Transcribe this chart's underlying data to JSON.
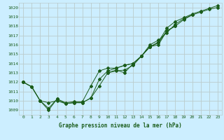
{
  "xlabel": "Graphe pression niveau de la mer (hPa)",
  "ylim": [
    1008.5,
    1020.5
  ],
  "xlim": [
    -0.5,
    23.5
  ],
  "yticks": [
    1009,
    1010,
    1011,
    1012,
    1013,
    1014,
    1015,
    1016,
    1017,
    1018,
    1019,
    1020
  ],
  "xticks": [
    0,
    1,
    2,
    3,
    4,
    5,
    6,
    7,
    8,
    9,
    10,
    11,
    12,
    13,
    14,
    15,
    16,
    17,
    18,
    19,
    20,
    21,
    22,
    23
  ],
  "bg_color": "#cceeff",
  "grid_color": "#bbcccc",
  "line_color": "#1a5c1a",
  "series": [
    [
      1012.0,
      1011.5,
      1010.0,
      1009.0,
      1010.2,
      1009.7,
      1009.8,
      1009.8,
      1010.3,
      1011.6,
      1013.0,
      1013.3,
      1013.0,
      1014.0,
      1014.8,
      1015.8,
      1016.2,
      1017.5,
      1018.0,
      null,
      null,
      null,
      null,
      null
    ],
    [
      1012.0,
      1011.5,
      1010.0,
      1009.8,
      1010.0,
      1009.7,
      1009.8,
      1009.8,
      1010.3,
      1012.3,
      1013.2,
      1013.5,
      1013.8,
      1014.0,
      1014.8,
      1016.0,
      1016.5,
      1017.3,
      1018.2,
      1018.8,
      1019.2,
      1019.5,
      1019.8,
      1020.0
    ],
    [
      1012.0,
      1011.5,
      1010.0,
      1009.2,
      1010.2,
      1009.8,
      1009.9,
      1009.9,
      1011.6,
      1013.2,
      1013.5,
      1013.5,
      1013.8,
      1014.0,
      1014.8,
      1015.8,
      1016.3,
      1017.8,
      1018.5,
      1018.9,
      1019.3,
      1019.6,
      1019.9,
      1020.2
    ],
    [
      1012.0,
      null,
      null,
      null,
      null,
      null,
      null,
      null,
      null,
      null,
      1013.0,
      1013.2,
      1013.3,
      1013.8,
      1014.8,
      1015.8,
      1016.0,
      1017.5,
      1018.0,
      1018.7,
      1019.2,
      null,
      null,
      null
    ]
  ]
}
